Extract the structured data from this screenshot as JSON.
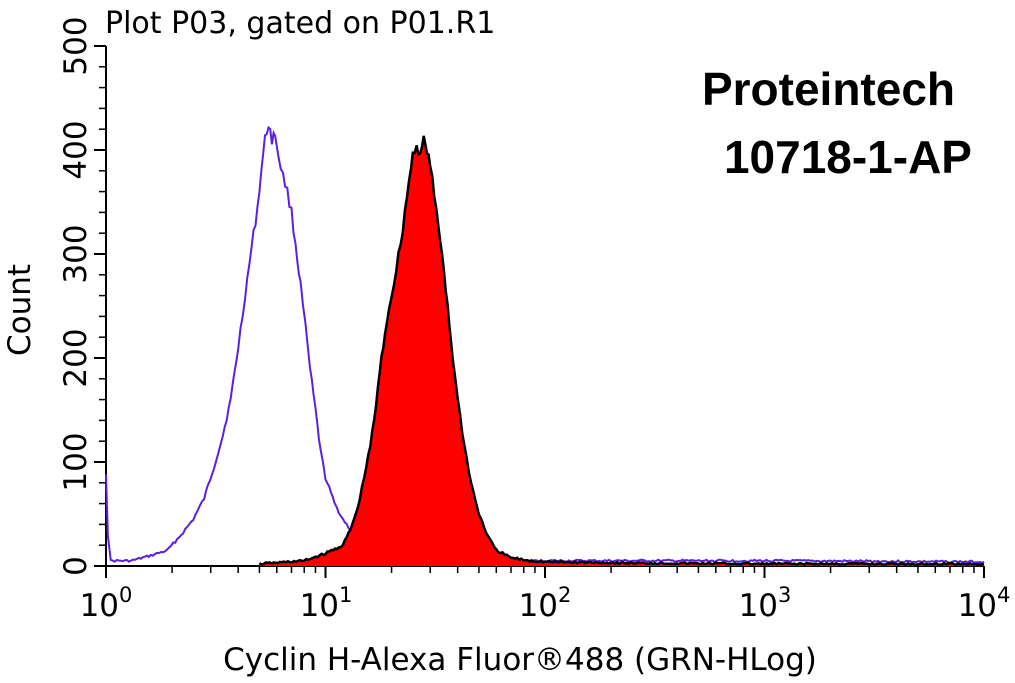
{
  "chart_data": {
    "type": "area",
    "title": "Plot P03, gated on P01.R1",
    "xlabel": "Cyclin H-Alexa Fluor®488 (GRN-HLog)",
    "ylabel": "Count",
    "xscale": "log",
    "xlim": [
      1,
      10000
    ],
    "ylim": [
      0,
      500
    ],
    "x_ticks": [
      {
        "base": "10",
        "exp": "0"
      },
      {
        "base": "10",
        "exp": "1"
      },
      {
        "base": "10",
        "exp": "2"
      },
      {
        "base": "10",
        "exp": "3"
      },
      {
        "base": "10",
        "exp": "4"
      }
    ],
    "y_ticks": [
      "0",
      "100",
      "200",
      "300",
      "400",
      "500"
    ],
    "annotation": [
      "Proteintech",
      "10718-1-AP"
    ],
    "series": [
      {
        "style": "outline",
        "color": "#5a1ee6",
        "points": [
          [
            1.0,
            90
          ],
          [
            1.02,
            30
          ],
          [
            1.05,
            5
          ],
          [
            1.3,
            5
          ],
          [
            1.6,
            10
          ],
          [
            1.9,
            15
          ],
          [
            2.2,
            30
          ],
          [
            2.5,
            45
          ],
          [
            2.8,
            65
          ],
          [
            3.1,
            95
          ],
          [
            3.4,
            125
          ],
          [
            3.7,
            160
          ],
          [
            4.0,
            210
          ],
          [
            4.3,
            260
          ],
          [
            4.6,
            305
          ],
          [
            4.9,
            345
          ],
          [
            5.1,
            380
          ],
          [
            5.3,
            410
          ],
          [
            5.5,
            425
          ],
          [
            5.7,
            410
          ],
          [
            5.9,
            415
          ],
          [
            6.1,
            395
          ],
          [
            6.4,
            375
          ],
          [
            6.7,
            360
          ],
          [
            7.0,
            340
          ],
          [
            7.3,
            310
          ],
          [
            7.7,
            270
          ],
          [
            8.1,
            230
          ],
          [
            8.5,
            190
          ],
          [
            9.0,
            150
          ],
          [
            9.5,
            110
          ],
          [
            10.0,
            85
          ],
          [
            11.0,
            60
          ],
          [
            12.0,
            45
          ],
          [
            13.5,
            30
          ],
          [
            15.0,
            22
          ],
          [
            18.0,
            12
          ],
          [
            22.0,
            8
          ],
          [
            40.0,
            5
          ],
          [
            100.0,
            5
          ],
          [
            1000.0,
            5
          ],
          [
            10000.0,
            4
          ]
        ]
      },
      {
        "style": "filled",
        "color": "#ff0000",
        "outline_color": "#000000",
        "points": [
          [
            5.0,
            2
          ],
          [
            8.0,
            5
          ],
          [
            10.0,
            12
          ],
          [
            12.0,
            20
          ],
          [
            13.0,
            35
          ],
          [
            14.0,
            55
          ],
          [
            15.0,
            85
          ],
          [
            16.0,
            115
          ],
          [
            17.0,
            155
          ],
          [
            18.0,
            200
          ],
          [
            19.0,
            235
          ],
          [
            20.0,
            260
          ],
          [
            21.0,
            285
          ],
          [
            22.0,
            310
          ],
          [
            23.0,
            340
          ],
          [
            24.0,
            370
          ],
          [
            25.0,
            395
          ],
          [
            26.0,
            405
          ],
          [
            27.0,
            395
          ],
          [
            28.0,
            410
          ],
          [
            29.0,
            400
          ],
          [
            30.0,
            385
          ],
          [
            32.0,
            340
          ],
          [
            34.0,
            300
          ],
          [
            36.0,
            250
          ],
          [
            38.0,
            200
          ],
          [
            40.0,
            160
          ],
          [
            43.0,
            115
          ],
          [
            46.0,
            80
          ],
          [
            50.0,
            50
          ],
          [
            55.0,
            28
          ],
          [
            60.0,
            15
          ],
          [
            70.0,
            8
          ],
          [
            85.0,
            5
          ],
          [
            100.0,
            4
          ],
          [
            200.0,
            3
          ],
          [
            1000.0,
            2
          ],
          [
            10000.0,
            2
          ]
        ]
      }
    ]
  }
}
